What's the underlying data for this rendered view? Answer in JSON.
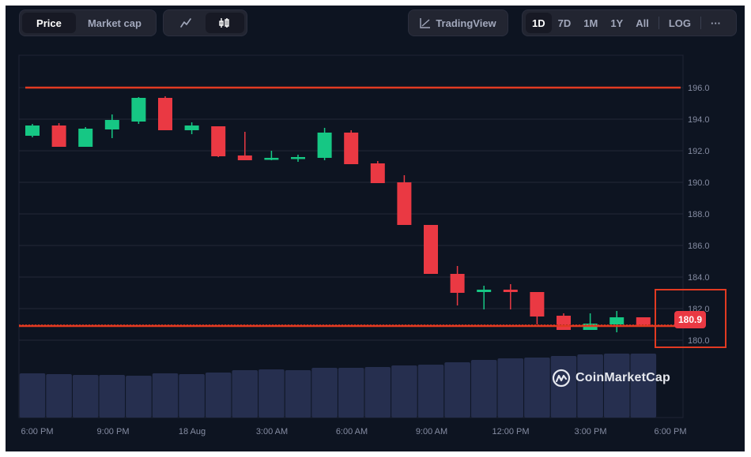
{
  "toolbar": {
    "view_tabs": [
      {
        "label": "Price",
        "active": true
      },
      {
        "label": "Market cap",
        "active": false
      }
    ],
    "chart_type_buttons": [
      {
        "icon": "line-chart-icon",
        "glyph": "〰",
        "active": false
      },
      {
        "icon": "candlestick-icon",
        "glyph": "ϕ0",
        "active": true
      }
    ],
    "tradingview_label": "TradingView",
    "ranges": [
      {
        "label": "1D",
        "active": true
      },
      {
        "label": "7D",
        "active": false
      },
      {
        "label": "1M",
        "active": false
      },
      {
        "label": "1Y",
        "active": false
      },
      {
        "label": "All",
        "active": false
      }
    ],
    "log_label": "LOG",
    "more_label": "···"
  },
  "current_price_tag": "180.9",
  "watermark": "CoinMarketCap",
  "colors": {
    "background": "#0d1421",
    "up": "#16c784",
    "down": "#ea3943",
    "volume": "#262f4f",
    "annotation": "#e23a22",
    "grid": "#222838",
    "axis_text": "#858ca2"
  },
  "chart_data": {
    "type": "candlestick",
    "title": "",
    "xlabel": "",
    "ylabel": "",
    "ylim": [
      178.1,
      198.0
    ],
    "y_ticks": [
      "196.0",
      "194.0",
      "192.0",
      "190.0",
      "188.0",
      "186.0",
      "184.0",
      "182.0",
      "180.0"
    ],
    "x_ticks": [
      "6:00 PM",
      "9:00 PM",
      "18 Aug",
      "3:00 AM",
      "6:00 AM",
      "9:00 AM",
      "12:00 PM",
      "3:00 PM",
      "6:00 PM"
    ],
    "grid": true,
    "legend": "none",
    "annotations": [
      {
        "type": "hline",
        "value": 196.0,
        "color": "#e23a22",
        "label": "resistance line"
      },
      {
        "type": "hline",
        "value": 180.9,
        "color": "#e23a22",
        "style": "dotted",
        "label": "current price 180.9"
      },
      {
        "type": "box",
        "label": "highlighted price axis region 180–182"
      }
    ],
    "candles": [
      {
        "o": 192.95,
        "h": 193.7,
        "l": 192.85,
        "c": 193.6
      },
      {
        "o": 193.6,
        "h": 193.75,
        "l": 192.25,
        "c": 192.25
      },
      {
        "o": 192.25,
        "h": 193.5,
        "l": 192.25,
        "c": 193.4
      },
      {
        "o": 193.35,
        "h": 194.3,
        "l": 192.8,
        "c": 193.95
      },
      {
        "o": 193.85,
        "h": 195.4,
        "l": 193.7,
        "c": 195.35
      },
      {
        "o": 195.35,
        "h": 195.45,
        "l": 193.3,
        "c": 193.3
      },
      {
        "o": 193.3,
        "h": 193.8,
        "l": 193.05,
        "c": 193.6
      },
      {
        "o": 193.55,
        "h": 193.55,
        "l": 191.6,
        "c": 191.65
      },
      {
        "o": 191.7,
        "h": 193.2,
        "l": 191.4,
        "c": 191.4
      },
      {
        "o": 191.45,
        "h": 192.0,
        "l": 191.4,
        "c": 191.55
      },
      {
        "o": 191.5,
        "h": 191.75,
        "l": 191.3,
        "c": 191.6
      },
      {
        "o": 191.55,
        "h": 193.45,
        "l": 191.4,
        "c": 193.15
      },
      {
        "o": 193.15,
        "h": 193.3,
        "l": 191.15,
        "c": 191.15
      },
      {
        "o": 191.2,
        "h": 191.35,
        "l": 189.95,
        "c": 189.95
      },
      {
        "o": 190.0,
        "h": 190.45,
        "l": 187.3,
        "c": 187.3
      },
      {
        "o": 187.3,
        "h": 187.3,
        "l": 184.2,
        "c": 184.2
      },
      {
        "o": 184.2,
        "h": 184.7,
        "l": 182.2,
        "c": 183.0
      },
      {
        "o": 183.05,
        "h": 183.45,
        "l": 181.95,
        "c": 183.2
      },
      {
        "o": 183.2,
        "h": 183.55,
        "l": 181.95,
        "c": 183.05
      },
      {
        "o": 183.05,
        "h": 183.05,
        "l": 181.0,
        "c": 181.5
      },
      {
        "o": 181.55,
        "h": 181.7,
        "l": 180.65,
        "c": 180.65
      },
      {
        "o": 180.65,
        "h": 181.7,
        "l": 180.65,
        "c": 181.05
      },
      {
        "o": 181.0,
        "h": 181.85,
        "l": 180.5,
        "c": 181.45
      },
      {
        "o": 181.45,
        "h": 181.45,
        "l": 180.9,
        "c": 180.9
      }
    ],
    "volume_relative": [
      56,
      55,
      54,
      54,
      53,
      56,
      55,
      57,
      60,
      61,
      60,
      63,
      63,
      64,
      66,
      67,
      70,
      73,
      75,
      76,
      78,
      80,
      81,
      81
    ]
  }
}
